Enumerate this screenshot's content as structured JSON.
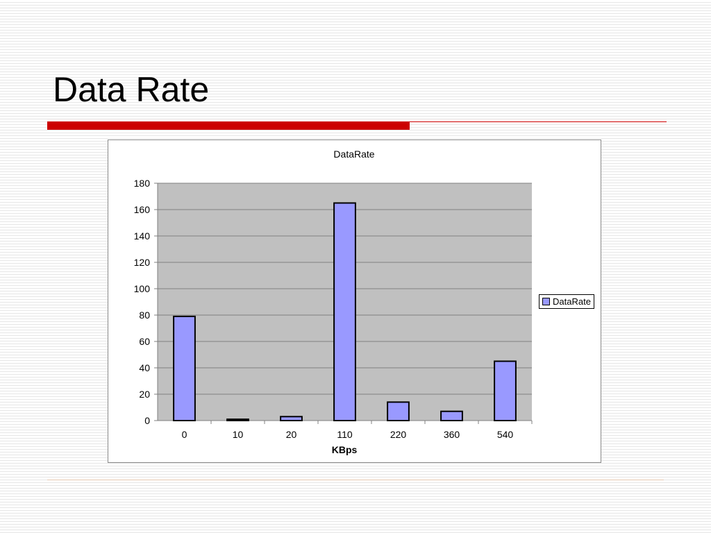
{
  "slide": {
    "title": "Data Rate",
    "accent_color": "#cc0000"
  },
  "chart_data": {
    "type": "bar",
    "title": "DataRate",
    "xlabel": "KBps",
    "ylabel": "",
    "categories": [
      "0",
      "10",
      "20",
      "110",
      "220",
      "360",
      "540"
    ],
    "series": [
      {
        "name": "DataRate",
        "values": [
          79,
          1,
          3,
          165,
          14,
          7,
          45
        ],
        "color": "#9999ff"
      }
    ],
    "ylim": [
      0,
      180
    ],
    "yticks": [
      "0",
      "20",
      "40",
      "60",
      "80",
      "100",
      "120",
      "140",
      "160",
      "180"
    ],
    "grid": true,
    "plot_background": "#c0c0c0",
    "legend_position": "right"
  }
}
